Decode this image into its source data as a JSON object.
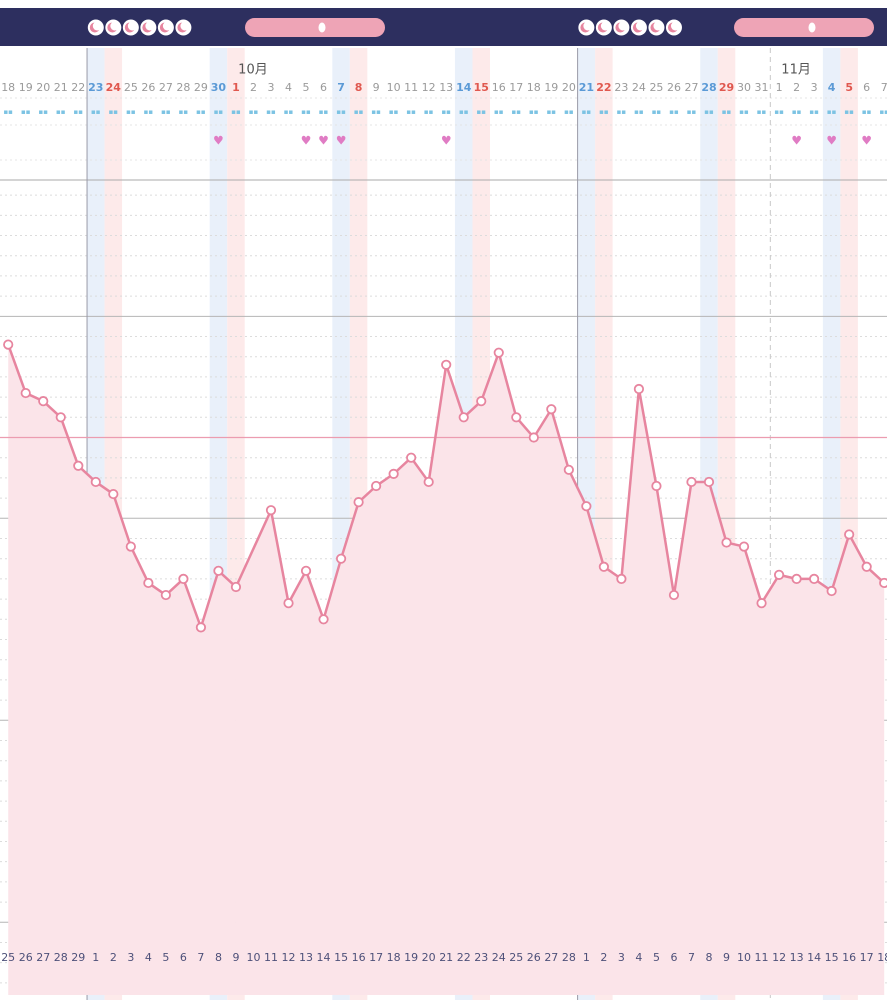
{
  "chart_data": {
    "type": "line",
    "categories": [
      "18",
      "19",
      "20",
      "21",
      "22",
      "23",
      "24",
      "25",
      "26",
      "27",
      "28",
      "29",
      "30",
      "1",
      "2",
      "3",
      "4",
      "5",
      "6",
      "7",
      "8",
      "9",
      "10",
      "11",
      "12",
      "13",
      "14",
      "15",
      "16",
      "17",
      "18",
      "19",
      "20",
      "21",
      "22",
      "23",
      "24",
      "25",
      "26",
      "27",
      "28",
      "29",
      "30",
      "31",
      "1",
      "2",
      "3",
      "4",
      "5",
      "6",
      "7"
    ],
    "cycle_day_labels": [
      "25",
      "26",
      "27",
      "28",
      "29",
      "1",
      "2",
      "3",
      "4",
      "5",
      "6",
      "7",
      "8",
      "9",
      "10",
      "11",
      "12",
      "13",
      "14",
      "15",
      "16",
      "17",
      "18",
      "19",
      "20",
      "21",
      "22",
      "23",
      "24",
      "25",
      "26",
      "27",
      "28",
      "1",
      "2",
      "3",
      "4",
      "5",
      "6",
      "7",
      "8",
      "9",
      "10",
      "11",
      "12",
      "13",
      "14",
      "15",
      "16",
      "17",
      "18"
    ],
    "month_labels": [
      "10月",
      "11月"
    ],
    "series": [
      {
        "color": "#e7859f",
        "values": [
          36.93,
          36.81,
          36.79,
          36.75,
          36.63,
          36.59,
          36.56,
          36.43,
          36.34,
          36.31,
          36.35,
          36.23,
          36.37,
          36.33,
          null,
          36.52,
          36.29,
          36.37,
          36.25,
          36.4,
          36.54,
          36.58,
          36.61,
          36.65,
          36.59,
          36.88,
          36.75,
          36.79,
          36.91,
          36.75,
          36.7,
          36.77,
          36.62,
          36.53,
          36.38,
          36.35,
          36.82,
          36.58,
          36.31,
          36.59,
          36.59,
          36.44,
          36.43,
          36.29,
          36.36,
          36.35,
          36.35,
          36.32,
          36.46,
          36.38,
          36.34
        ]
      }
    ],
    "coverline": 36.7,
    "coverline_color": "#ec9cb0",
    "fill_color": "#fbe4e9",
    "ylim": [
      35.32,
      37.33
    ],
    "yticks": [
      35.5,
      36.0,
      36.5,
      37.0
    ],
    "minor_yticks": [
      35.35,
      35.4,
      35.45,
      35.55,
      35.6,
      35.65,
      35.7,
      35.75,
      35.8,
      35.85,
      35.9,
      35.95,
      36.05,
      36.1,
      36.15,
      36.2,
      36.25,
      36.3,
      36.35,
      36.4,
      36.45,
      36.55,
      36.6,
      36.65,
      36.7,
      36.75,
      36.8,
      36.85,
      36.9,
      36.95,
      37.05,
      37.1,
      37.15,
      37.2,
      37.25,
      37.3
    ],
    "grid": true
  }
}
